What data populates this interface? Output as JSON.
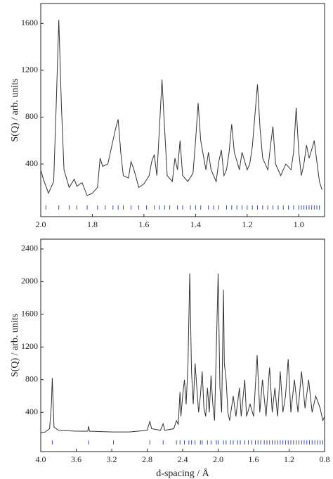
{
  "chart_data": [
    {
      "type": "line",
      "ylabel": "S(Q) / arb. units",
      "xlim": [
        2.0,
        0.9
      ],
      "ylim": [
        -50,
        1770
      ],
      "xticks": [
        2.0,
        1.8,
        1.6,
        1.4,
        1.2,
        1.0
      ],
      "yticks": [
        400,
        800,
        1200,
        1600
      ],
      "x": [
        2.0,
        1.99,
        1.97,
        1.95,
        1.94,
        1.93,
        1.92,
        1.91,
        1.89,
        1.87,
        1.86,
        1.84,
        1.82,
        1.8,
        1.78,
        1.77,
        1.76,
        1.74,
        1.72,
        1.71,
        1.7,
        1.69,
        1.68,
        1.66,
        1.65,
        1.64,
        1.62,
        1.6,
        1.58,
        1.57,
        1.56,
        1.55,
        1.54,
        1.53,
        1.52,
        1.51,
        1.49,
        1.48,
        1.47,
        1.46,
        1.45,
        1.43,
        1.41,
        1.4,
        1.39,
        1.38,
        1.36,
        1.35,
        1.34,
        1.32,
        1.31,
        1.3,
        1.29,
        1.28,
        1.27,
        1.26,
        1.25,
        1.23,
        1.22,
        1.2,
        1.19,
        1.18,
        1.16,
        1.15,
        1.14,
        1.12,
        1.11,
        1.1,
        1.09,
        1.07,
        1.06,
        1.05,
        1.03,
        1.02,
        1.01,
        1.0,
        0.99,
        0.98,
        0.97,
        0.96,
        0.95,
        0.94,
        0.93,
        0.92,
        0.91
      ],
      "series": [
        {
          "color": "#333333",
          "values": [
            350,
            270,
            150,
            250,
            900,
            1630,
            900,
            350,
            200,
            270,
            210,
            240,
            130,
            150,
            200,
            450,
            380,
            400,
            600,
            700,
            780,
            500,
            300,
            280,
            420,
            360,
            200,
            230,
            300,
            420,
            480,
            300,
            700,
            1120,
            700,
            300,
            250,
            450,
            350,
            600,
            300,
            250,
            320,
            600,
            920,
            600,
            350,
            500,
            350,
            250,
            420,
            520,
            300,
            350,
            500,
            740,
            500,
            350,
            500,
            350,
            400,
            550,
            1080,
            700,
            450,
            350,
            550,
            720,
            400,
            300,
            350,
            400,
            350,
            500,
            880,
            500,
            300,
            400,
            560,
            450,
            520,
            600,
            420,
            250,
            180
          ]
        }
      ],
      "reflections": {
        "color": "#3a4fb5",
        "x": [
          1.98,
          1.93,
          1.89,
          1.86,
          1.82,
          1.78,
          1.75,
          1.72,
          1.7,
          1.68,
          1.65,
          1.62,
          1.59,
          1.56,
          1.54,
          1.52,
          1.5,
          1.47,
          1.45,
          1.42,
          1.4,
          1.38,
          1.35,
          1.33,
          1.31,
          1.28,
          1.26,
          1.24,
          1.22,
          1.2,
          1.18,
          1.16,
          1.14,
          1.12,
          1.1,
          1.08,
          1.06,
          1.04,
          1.02,
          1.0,
          0.99,
          0.98,
          0.97,
          0.96,
          0.95,
          0.94,
          0.93,
          0.92
        ]
      }
    },
    {
      "type": "line",
      "xlabel": "d-spacing / Å",
      "ylabel": "S(Q) / arb. units",
      "xlim": [
        4.0,
        0.8
      ],
      "ylim": [
        -80,
        2520
      ],
      "xticks": [
        4.0,
        3.6,
        3.2,
        2.8,
        2.4,
        2.0,
        1.6,
        1.2,
        0.8
      ],
      "yticks": [
        400,
        800,
        1200,
        1600,
        2000,
        2400
      ],
      "x": [
        4.0,
        3.95,
        3.9,
        3.88,
        3.87,
        3.86,
        3.85,
        3.8,
        3.6,
        3.47,
        3.46,
        3.45,
        3.2,
        3.0,
        2.8,
        2.77,
        2.75,
        2.65,
        2.62,
        2.6,
        2.5,
        2.47,
        2.45,
        2.43,
        2.42,
        2.4,
        2.38,
        2.36,
        2.34,
        2.32,
        2.3,
        2.28,
        2.26,
        2.24,
        2.22,
        2.2,
        2.18,
        2.16,
        2.14,
        2.12,
        2.1,
        2.08,
        2.06,
        2.04,
        2.02,
        2.0,
        1.98,
        1.96,
        1.94,
        1.93,
        1.91,
        1.89,
        1.87,
        1.85,
        1.83,
        1.8,
        1.76,
        1.74,
        1.7,
        1.68,
        1.64,
        1.6,
        1.56,
        1.53,
        1.5,
        1.46,
        1.42,
        1.39,
        1.36,
        1.33,
        1.3,
        1.27,
        1.24,
        1.21,
        1.18,
        1.14,
        1.1,
        1.06,
        1.02,
        0.98,
        0.94,
        0.9,
        0.85,
        0.82,
        0.8
      ],
      "series": [
        {
          "color": "#333333",
          "values": [
            150,
            160,
            200,
            500,
            820,
            500,
            220,
            180,
            170,
            170,
            230,
            170,
            160,
            160,
            180,
            290,
            200,
            180,
            260,
            180,
            200,
            300,
            250,
            650,
            350,
            600,
            800,
            500,
            1000,
            2100,
            900,
            500,
            1000,
            700,
            400,
            600,
            900,
            450,
            350,
            700,
            400,
            850,
            500,
            300,
            1200,
            2100,
            700,
            400,
            1900,
            1000,
            800,
            400,
            300,
            450,
            600,
            350,
            700,
            350,
            800,
            350,
            500,
            350,
            1100,
            400,
            800,
            350,
            950,
            400,
            700,
            350,
            900,
            400,
            600,
            1050,
            400,
            800,
            400,
            900,
            450,
            800,
            400,
            600,
            450,
            300,
            350
          ]
        }
      ],
      "reflections": {
        "color": "#3a4fb5",
        "x": [
          3.87,
          3.46,
          3.18,
          2.77,
          2.62,
          2.47,
          2.43,
          2.38,
          2.33,
          2.3,
          2.26,
          2.2,
          2.18,
          2.12,
          2.08,
          2.02,
          2.0,
          1.94,
          1.91,
          1.86,
          1.83,
          1.78,
          1.75,
          1.7,
          1.66,
          1.62,
          1.58,
          1.55,
          1.52,
          1.48,
          1.45,
          1.42,
          1.39,
          1.36,
          1.33,
          1.3,
          1.27,
          1.24,
          1.21,
          1.18,
          1.15,
          1.12,
          1.09,
          1.06,
          1.03,
          1.0,
          0.97,
          0.94,
          0.91,
          0.88,
          0.85,
          0.82
        ]
      }
    }
  ]
}
